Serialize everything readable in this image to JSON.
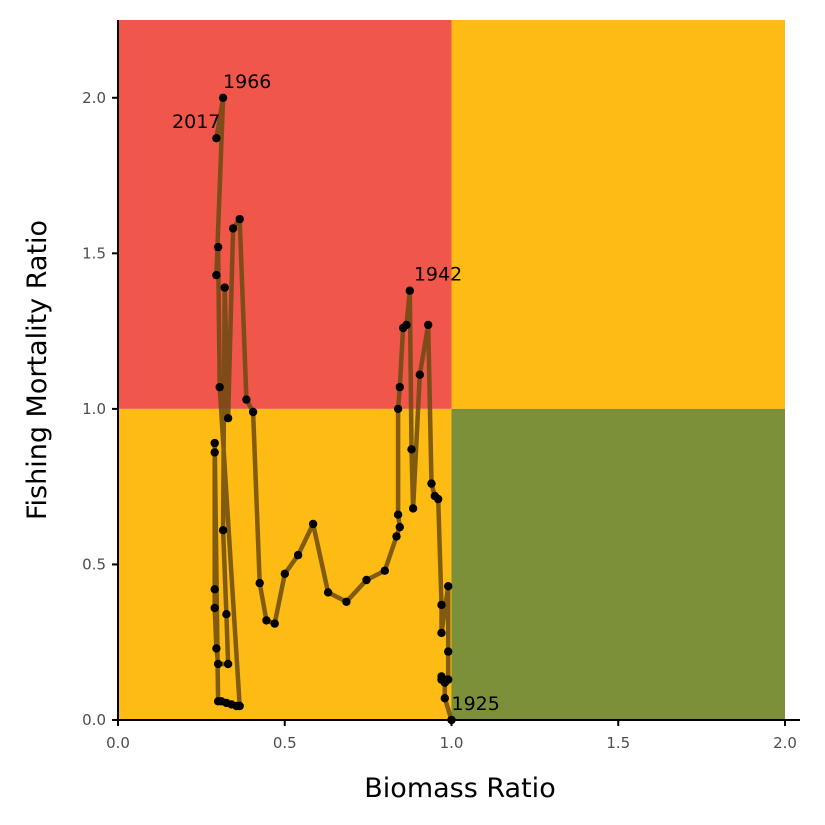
{
  "chart_data": {
    "type": "line",
    "title": "",
    "xlabel": "Biomass Ratio",
    "ylabel": "Fishing Mortality Ratio",
    "xlim": [
      0,
      2
    ],
    "ylim": [
      0,
      2.25
    ],
    "x_ticks": [
      0.0,
      0.5,
      1.0,
      1.5,
      2.0
    ],
    "x_tick_labels": [
      "0.0",
      "0.5",
      "1.0",
      "1.5",
      "2.0"
    ],
    "y_ticks": [
      0.0,
      0.5,
      1.0,
      1.5,
      2.0
    ],
    "y_tick_labels": [
      "0.0",
      "0.5",
      "1.0",
      "1.5",
      "2.0"
    ],
    "grid": false,
    "legend": "none",
    "colors": {
      "overfished_overfishing": "#F0564A",
      "caution": "#FDBB13",
      "healthy": "#7C8F39",
      "trajectory_line": "#6B4A10",
      "points": "#000000"
    },
    "regions": [
      {
        "name": "overfished-overfishing",
        "x": [
          0,
          1
        ],
        "y": [
          1,
          2.25
        ],
        "color": "#F0564A"
      },
      {
        "name": "overfishing-only",
        "x": [
          1,
          2
        ],
        "y": [
          1,
          2.25
        ],
        "color": "#FDBB13"
      },
      {
        "name": "overfished-only",
        "x": [
          0,
          1
        ],
        "y": [
          0,
          1
        ],
        "color": "#FDBB13"
      },
      {
        "name": "healthy",
        "x": [
          1,
          2
        ],
        "y": [
          0,
          1
        ],
        "color": "#7C8F39"
      }
    ],
    "series": [
      {
        "points": [
          [
            1.0,
            0.0
          ],
          [
            0.98,
            0.07
          ],
          [
            0.98,
            0.12
          ],
          [
            0.97,
            0.13
          ],
          [
            0.97,
            0.14
          ],
          [
            0.99,
            0.13
          ],
          [
            0.99,
            0.22
          ],
          [
            0.99,
            0.43
          ],
          [
            0.97,
            0.28
          ],
          [
            0.97,
            0.37
          ],
          [
            0.96,
            0.71
          ],
          [
            0.95,
            0.72
          ],
          [
            0.94,
            0.76
          ],
          [
            0.93,
            1.27
          ],
          [
            0.905,
            1.11
          ],
          [
            0.885,
            0.68
          ],
          [
            0.88,
            0.87
          ],
          [
            0.875,
            1.38
          ],
          [
            0.865,
            1.27
          ],
          [
            0.855,
            1.26
          ],
          [
            0.845,
            1.07
          ],
          [
            0.84,
            1.0
          ],
          [
            0.84,
            0.66
          ],
          [
            0.845,
            0.62
          ],
          [
            0.835,
            0.59
          ],
          [
            0.8,
            0.48
          ],
          [
            0.745,
            0.45
          ],
          [
            0.685,
            0.38
          ],
          [
            0.63,
            0.41
          ],
          [
            0.585,
            0.63
          ],
          [
            0.54,
            0.53
          ],
          [
            0.5,
            0.47
          ],
          [
            0.47,
            0.31
          ],
          [
            0.445,
            0.32
          ],
          [
            0.425,
            0.44
          ],
          [
            0.405,
            0.99
          ],
          [
            0.385,
            1.03
          ],
          [
            0.365,
            1.61
          ],
          [
            0.345,
            1.58
          ],
          [
            0.33,
            0.97
          ],
          [
            0.32,
            1.39
          ],
          [
            0.315,
            0.61
          ],
          [
            0.325,
            0.34
          ],
          [
            0.33,
            0.18
          ],
          [
            0.3,
            0.18
          ],
          [
            0.295,
            0.23
          ],
          [
            0.29,
            0.36
          ],
          [
            0.29,
            0.42
          ],
          [
            0.29,
            0.86
          ],
          [
            0.29,
            0.89
          ],
          [
            0.3,
            0.06
          ],
          [
            0.31,
            0.06
          ],
          [
            0.325,
            0.055
          ],
          [
            0.34,
            0.05
          ],
          [
            0.355,
            0.045
          ],
          [
            0.365,
            0.045
          ],
          [
            0.305,
            1.07
          ],
          [
            0.3,
            1.52
          ],
          [
            0.295,
            1.43
          ],
          [
            0.315,
            2.0
          ],
          [
            0.295,
            1.87
          ]
        ]
      }
    ],
    "annotations": [
      {
        "text": "1966",
        "x": 0.315,
        "y": 2.0
      },
      {
        "text": "2017",
        "x": 0.295,
        "y": 1.87
      },
      {
        "text": "1942",
        "x": 0.875,
        "y": 1.38
      },
      {
        "text": "1925",
        "x": 1.0,
        "y": 0.0
      }
    ]
  }
}
